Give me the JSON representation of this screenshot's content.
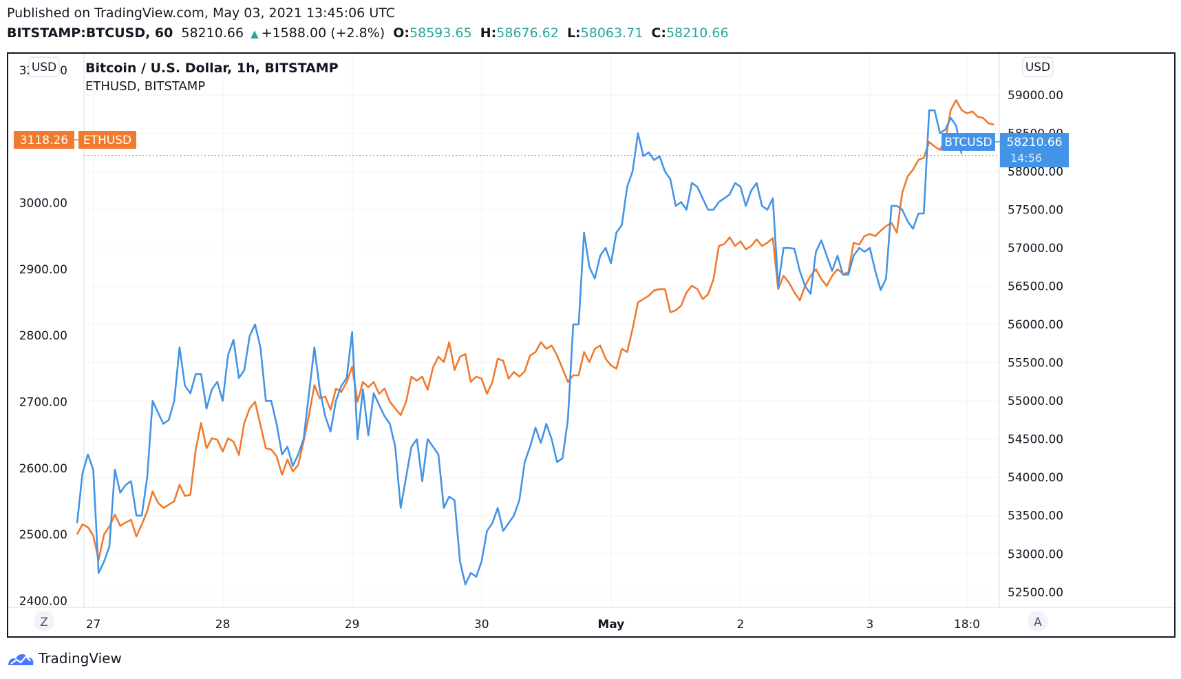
{
  "header": {
    "published_line": "Published on TradingView.com, May 03, 2021 13:45:06 UTC",
    "symbol_line": "BITSTAMP:BTCUSD, 60",
    "last": "58210.66",
    "change": "+1588.00 (+2.8%)",
    "o_label": "O:",
    "o_value": "58593.65",
    "h_label": "H:",
    "h_value": "58676.62",
    "l_label": "L:",
    "l_value": "58063.71",
    "c_label": "C:",
    "c_value": "58210.66"
  },
  "legend": {
    "main": "Bitcoin / U.S. Dollar, 1h, BITSTAMP",
    "secondary": "ETHUSD, BITSTAMP"
  },
  "buttons": {
    "left_currency": "USD",
    "right_currency": "USD",
    "left_scale_mode": "Z",
    "right_scale_mode": "A"
  },
  "price_tags": {
    "eth_value": "3118.26",
    "eth_name": "ETHUSD",
    "btc_name": "BTCUSD",
    "btc_value": "58210.66",
    "btc_countdown": "14:56"
  },
  "footer": {
    "brand": "TradingView"
  },
  "colors": {
    "eth": "#f07a2d",
    "btc": "#4394e6",
    "accent_green": "#26a69a",
    "grid": "#eef0f3"
  },
  "chart_data": {
    "type": "line",
    "left_axis": {
      "ticks": [
        "2400.00",
        "2500.00",
        "2600.00",
        "2700.00",
        "2800.00",
        "2900.00",
        "3000.00",
        "3100.00",
        "3200.00"
      ],
      "range": [
        2390,
        3225
      ]
    },
    "right_axis": {
      "ticks": [
        "52500.00",
        "53000.00",
        "53500.00",
        "54000.00",
        "54500.00",
        "55000.00",
        "55500.00",
        "56000.00",
        "56500.00",
        "57000.00",
        "57500.00",
        "58000.00",
        "58500.00",
        "59000.00",
        "59500.00"
      ],
      "range": [
        52300,
        59540
      ]
    },
    "x_axis": {
      "unit": "hours from Apr 26 21:00 UTC",
      "ticks": [
        {
          "label": "27",
          "t": 3
        },
        {
          "label": "28",
          "t": 27
        },
        {
          "label": "29",
          "t": 51
        },
        {
          "label": "30",
          "t": 75
        },
        {
          "label": "May",
          "t": 99,
          "bold": true
        },
        {
          "label": "2",
          "t": 123
        },
        {
          "label": "3",
          "t": 147
        },
        {
          "label": "18:0",
          "t": 165
        }
      ],
      "range": [
        0,
        171
      ]
    },
    "series": [
      {
        "name": "ETHUSD",
        "axis": "left",
        "x_step": 1,
        "values": [
          2500,
          2515,
          2511,
          2498,
          2462,
          2500,
          2512,
          2530,
          2513,
          2518,
          2522,
          2497,
          2515,
          2535,
          2565,
          2548,
          2540,
          2545,
          2550,
          2575,
          2558,
          2560,
          2628,
          2668,
          2630,
          2645,
          2643,
          2625,
          2645,
          2640,
          2620,
          2668,
          2690,
          2700,
          2665,
          2630,
          2628,
          2618,
          2590,
          2613,
          2595,
          2605,
          2640,
          2680,
          2725,
          2705,
          2708,
          2688,
          2720,
          2715,
          2730,
          2753,
          2700,
          2730,
          2722,
          2730,
          2712,
          2720,
          2700,
          2690,
          2680,
          2700,
          2738,
          2732,
          2738,
          2718,
          2752,
          2768,
          2760,
          2790,
          2748,
          2768,
          2772,
          2730,
          2738,
          2735,
          2712,
          2730,
          2765,
          2762,
          2735,
          2745,
          2738,
          2746,
          2770,
          2775,
          2790,
          2780,
          2785,
          2770,
          2750,
          2730,
          2740,
          2740,
          2775,
          2760,
          2780,
          2785,
          2765,
          2755,
          2750,
          2780,
          2775,
          2810,
          2850,
          2855,
          2860,
          2868,
          2870,
          2870,
          2835,
          2838,
          2845,
          2865,
          2875,
          2870,
          2855,
          2862,
          2885,
          2935,
          2938,
          2948,
          2935,
          2942,
          2930,
          2935,
          2945,
          2935,
          2940,
          2947,
          2870,
          2890,
          2880,
          2865,
          2853,
          2875,
          2890,
          2900,
          2885,
          2875,
          2890,
          2900,
          2893,
          2895,
          2940,
          2937,
          2950,
          2953,
          2950,
          2958,
          2965,
          2970,
          2955,
          3015,
          3040,
          3050,
          3065,
          3068,
          3092,
          3085,
          3080,
          3095,
          3140,
          3155,
          3140,
          3135,
          3138,
          3130,
          3128,
          3120,
          3118
        ]
      },
      {
        "name": "BTCUSD",
        "axis": "right",
        "x_step": 1,
        "values": [
          53400,
          54050,
          54300,
          54100,
          52750,
          52900,
          53100,
          54100,
          53800,
          53900,
          53950,
          53500,
          53500,
          54000,
          55000,
          54850,
          54700,
          54750,
          55000,
          55700,
          55200,
          55100,
          55350,
          55350,
          54900,
          55150,
          55250,
          55000,
          55600,
          55800,
          55300,
          55400,
          55850,
          56000,
          55700,
          55000,
          55000,
          54700,
          54300,
          54400,
          54150,
          54300,
          54500,
          55100,
          55700,
          55150,
          54800,
          54600,
          55000,
          55200,
          55300,
          55900,
          54500,
          55150,
          54550,
          55100,
          54950,
          54800,
          54700,
          54400,
          53600,
          54000,
          54400,
          54500,
          53950,
          54500,
          54400,
          54300,
          53600,
          53750,
          53700,
          52900,
          52600,
          52750,
          52700,
          52900,
          53300,
          53400,
          53600,
          53300,
          53400,
          53500,
          53700,
          54200,
          54400,
          54650,
          54450,
          54700,
          54500,
          54200,
          54250,
          54750,
          56000,
          56000,
          57200,
          56750,
          56600,
          56900,
          57000,
          56800,
          57200,
          57300,
          57800,
          58000,
          58500,
          58200,
          58250,
          58150,
          58200,
          58000,
          57900,
          57550,
          57600,
          57500,
          57850,
          57800,
          57650,
          57500,
          57500,
          57600,
          57650,
          57700,
          57850,
          57800,
          57550,
          57750,
          57850,
          57550,
          57500,
          57650,
          56500,
          57000,
          57000,
          56990,
          56700,
          56500,
          56400,
          56950,
          57100,
          56900,
          56700,
          56900,
          56650,
          56650,
          56900,
          57000,
          56950,
          57000,
          56700,
          56450,
          56600,
          57550,
          57550,
          57500,
          57350,
          57250,
          57450,
          57450,
          58800,
          58800,
          58500,
          58550,
          58700,
          58600,
          58230
        ]
      }
    ]
  }
}
